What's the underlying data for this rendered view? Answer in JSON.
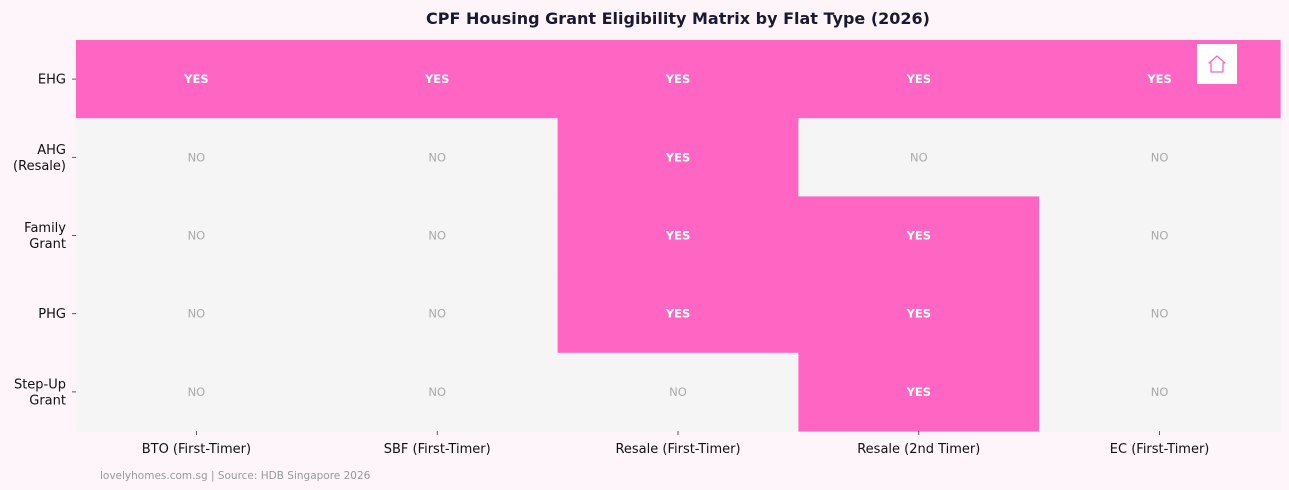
{
  "chart_data": {
    "type": "heatmap",
    "title": "CPF Housing Grant Eligibility Matrix by Flat Type (2026)",
    "columns": [
      "BTO (First-Timer)",
      "SBF (First-Timer)",
      "Resale (First-Timer)",
      "Resale (2nd Timer)",
      "EC (First-Timer)"
    ],
    "rows": [
      [
        "EHG"
      ],
      [
        "AHG",
        "(Resale)"
      ],
      [
        "Family",
        "Grant"
      ],
      [
        "PHG"
      ],
      [
        "Step-Up",
        "Grant"
      ]
    ],
    "values": [
      [
        1,
        1,
        1,
        1,
        1
      ],
      [
        0,
        0,
        1,
        0,
        0
      ],
      [
        0,
        0,
        1,
        1,
        0
      ],
      [
        0,
        0,
        1,
        1,
        0
      ],
      [
        0,
        0,
        0,
        1,
        0
      ]
    ],
    "labels": {
      "1": "YES",
      "0": "NO"
    },
    "colors": {
      "1": "#ff66c4",
      "0": "#f5f5f5",
      "label_yes": "#ffffff",
      "label_no": "#aaaaaa"
    },
    "grid": false,
    "legend": "none"
  },
  "footer": {
    "source": "lovelyhomes.com.sg | Source: HDB Singapore 2026"
  },
  "logo": {
    "icon": "house-icon"
  }
}
